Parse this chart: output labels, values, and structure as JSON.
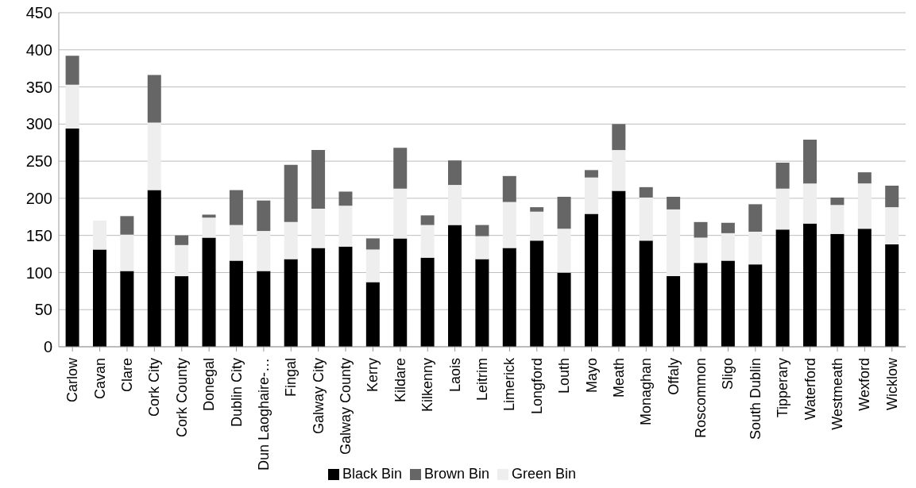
{
  "chart_data": {
    "type": "bar",
    "stacked": true,
    "categories": [
      "Carlow",
      "Cavan",
      "Clare",
      "Cork City",
      "Cork County",
      "Donegal",
      "Dublin City",
      "Dun Laoghaire-…",
      "Fingal",
      "Galway City",
      "Galway County",
      "Kerry",
      "Kildare",
      "Kilkenny",
      "Laois",
      "Leitrim",
      "Limerick",
      "Longford",
      "Louth",
      "Mayo",
      "Meath",
      "Monaghan",
      "Offaly",
      "Roscommon",
      "Sligo",
      "South Dublin",
      "Tipperary",
      "Waterford",
      "Westmeath",
      "Wexford",
      "Wicklow"
    ],
    "series": [
      {
        "name": "Black Bin",
        "color": "#000000",
        "values": [
          294,
          131,
          102,
          211,
          95,
          147,
          116,
          102,
          118,
          133,
          135,
          87,
          146,
          120,
          164,
          118,
          133,
          143,
          100,
          179,
          210,
          143,
          95,
          113,
          116,
          111,
          158,
          166,
          152,
          159,
          138
        ]
      },
      {
        "name": "Green Bin",
        "color": "#eeeeee",
        "values": [
          59,
          39,
          49,
          91,
          42,
          27,
          48,
          54,
          50,
          53,
          55,
          44,
          67,
          44,
          54,
          31,
          62,
          39,
          59,
          49,
          55,
          58,
          90,
          34,
          37,
          44,
          55,
          54,
          39,
          61,
          50
        ]
      },
      {
        "name": "Brown Bin",
        "color": "#666666",
        "values": [
          39,
          0,
          25,
          64,
          13,
          4,
          47,
          41,
          77,
          79,
          19,
          15,
          55,
          13,
          33,
          15,
          35,
          6,
          43,
          10,
          35,
          14,
          17,
          21,
          14,
          37,
          35,
          59,
          10,
          15,
          29
        ]
      }
    ],
    "ylim": [
      0,
      450
    ],
    "yticks": [
      0,
      50,
      100,
      150,
      200,
      250,
      300,
      350,
      400,
      450
    ],
    "grid": "y",
    "legend": "bottom"
  }
}
